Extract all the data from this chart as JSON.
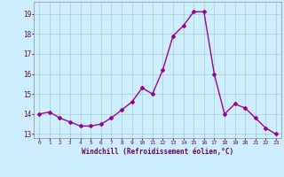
{
  "x": [
    0,
    1,
    2,
    3,
    4,
    5,
    6,
    7,
    8,
    9,
    10,
    11,
    12,
    13,
    14,
    15,
    16,
    17,
    18,
    19,
    20,
    21,
    22,
    23
  ],
  "y": [
    14.0,
    14.1,
    13.8,
    13.6,
    13.4,
    13.4,
    13.5,
    13.8,
    14.2,
    14.6,
    15.3,
    15.0,
    16.2,
    17.9,
    18.4,
    19.1,
    19.1,
    16.0,
    14.0,
    14.5,
    14.3,
    13.8,
    13.3,
    13.0
  ],
  "line_color": "#990099",
  "marker": "D",
  "markersize": 2.0,
  "linewidth": 1.0,
  "background_color": "#cceeff",
  "grid_color": "#aacccc",
  "xlabel": "Windchill (Refroidissement éolien,°C)",
  "xlabel_color": "#660066",
  "tick_color": "#660066",
  "ylim": [
    12.8,
    19.6
  ],
  "xlim": [
    -0.5,
    23.5
  ],
  "yticks": [
    13,
    14,
    15,
    16,
    17,
    18,
    19
  ],
  "xticks": [
    0,
    1,
    2,
    3,
    4,
    5,
    6,
    7,
    8,
    9,
    10,
    11,
    12,
    13,
    14,
    15,
    16,
    17,
    18,
    19,
    20,
    21,
    22,
    23
  ],
  "xtick_labels": [
    "0",
    "1",
    "2",
    "3",
    "4",
    "5",
    "6",
    "7",
    "8",
    "9",
    "10",
    "11",
    "12",
    "13",
    "14",
    "15",
    "16",
    "17",
    "18",
    "19",
    "20",
    "21",
    "22",
    "23"
  ]
}
